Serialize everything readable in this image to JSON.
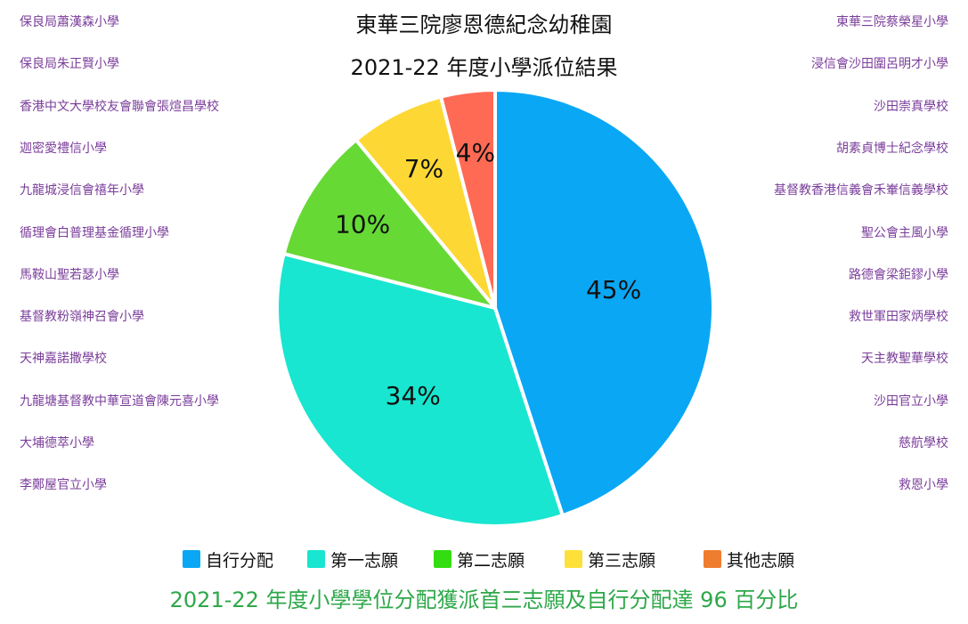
{
  "header": {
    "title_line1": "東華三院廖恩德紀念幼稚園",
    "title_line2": "2021-22 年度小學派位結果"
  },
  "schools": {
    "left": [
      "保良局蕭漢森小學",
      "保良局朱正賢小學",
      "香港中文大學校友會聯會張煊昌學校",
      "迦密愛禮信小學",
      "九龍城浸信會禧年小學",
      "循理會白普理基金循理小學",
      "馬鞍山聖若瑟小學",
      "基督教粉嶺神召會小學",
      "天神嘉諾撒學校",
      "九龍塘基督教中華宣道會陳元喜小學",
      "大埔德萃小學",
      "李鄭屋官立小學"
    ],
    "right": [
      "東華三院蔡榮星小學",
      "浸信會沙田圍呂明才小學",
      "沙田崇真學校",
      "胡素貞博士紀念學校",
      "基督教香港信義會禾輋信義學校",
      "聖公會主風小學",
      "路德會梁鉅鏐小學",
      "救世軍田家炳學校",
      "天主教聖華學校",
      "沙田官立小學",
      "慈航學校",
      "救恩小學"
    ]
  },
  "chart_data": {
    "type": "pie",
    "title": "2021-22 年度小學派位結果",
    "unit": "%",
    "slices": [
      {
        "label": "自行分配",
        "value": 45,
        "display": "45%",
        "color": "#0aa7f5"
      },
      {
        "label": "第一志願",
        "value": 34,
        "display": "34%",
        "color": "#18e6d0"
      },
      {
        "label": "第二志願",
        "value": 10,
        "display": "10%",
        "color": "#66d935"
      },
      {
        "label": "第三志願",
        "value": 7,
        "display": "7%",
        "color": "#fdd835"
      },
      {
        "label": "其他志願",
        "value": 4,
        "display": "4%",
        "color": "#ff6a55"
      }
    ],
    "legend": [
      {
        "label": "自行分配",
        "color": "#0aa7f5"
      },
      {
        "label": "第一志願",
        "color": "#18e6d0"
      },
      {
        "label": "第二志願",
        "color": "#33dd11"
      },
      {
        "label": "第三志願",
        "color": "#fde13a"
      },
      {
        "label": "其他志願",
        "color": "#ef7d30"
      }
    ],
    "legend_placement": "bottom"
  },
  "footer": {
    "note": "2021-22 年度小學學位分配獲派首三志願及自行分配達 96 百分比"
  }
}
